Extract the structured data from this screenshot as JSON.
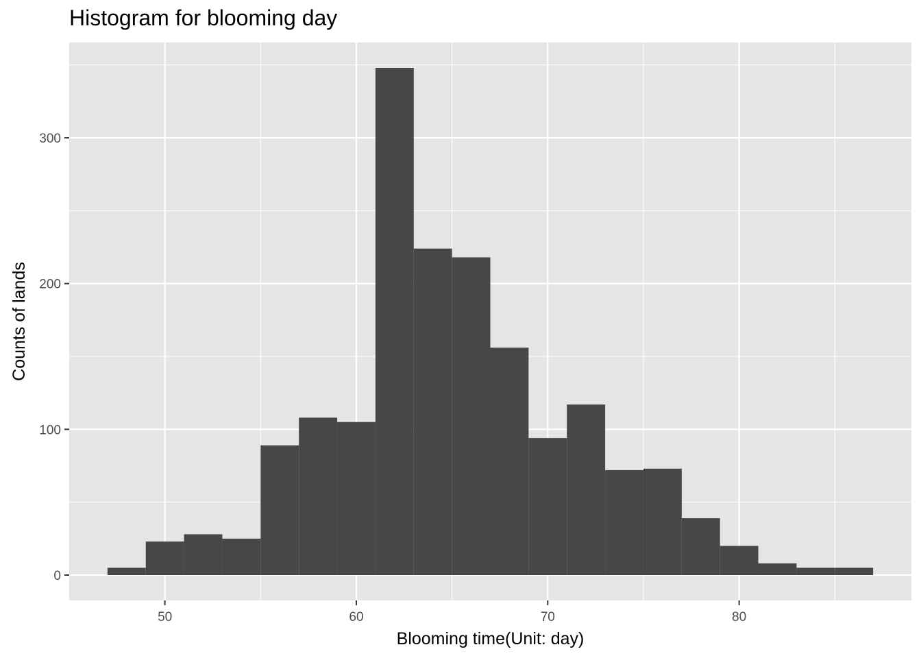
{
  "chart_data": {
    "type": "bar",
    "subtype": "histogram",
    "title": "Histogram for blooming day",
    "xlabel": "Blooming time(Unit: day)",
    "ylabel": "Counts of lands",
    "bin_width": 2,
    "bins": [
      {
        "start": 47,
        "end": 49,
        "count": 5
      },
      {
        "start": 49,
        "end": 51,
        "count": 23
      },
      {
        "start": 51,
        "end": 53,
        "count": 28
      },
      {
        "start": 53,
        "end": 55,
        "count": 25
      },
      {
        "start": 55,
        "end": 57,
        "count": 89
      },
      {
        "start": 57,
        "end": 59,
        "count": 108
      },
      {
        "start": 59,
        "end": 61,
        "count": 105
      },
      {
        "start": 61,
        "end": 63,
        "count": 348
      },
      {
        "start": 63,
        "end": 65,
        "count": 224
      },
      {
        "start": 65,
        "end": 67,
        "count": 218
      },
      {
        "start": 67,
        "end": 69,
        "count": 156
      },
      {
        "start": 69,
        "end": 71,
        "count": 94
      },
      {
        "start": 71,
        "end": 73,
        "count": 117
      },
      {
        "start": 73,
        "end": 75,
        "count": 72
      },
      {
        "start": 75,
        "end": 77,
        "count": 73
      },
      {
        "start": 77,
        "end": 79,
        "count": 39
      },
      {
        "start": 79,
        "end": 81,
        "count": 20
      },
      {
        "start": 81,
        "end": 83,
        "count": 8
      },
      {
        "start": 83,
        "end": 85,
        "count": 5
      },
      {
        "start": 85,
        "end": 87,
        "count": 5
      }
    ],
    "xlim": [
      45,
      89
    ],
    "ylim": [
      -17.4,
      365.4
    ],
    "x_ticks": [
      50,
      60,
      70,
      80
    ],
    "y_ticks": [
      0,
      100,
      200,
      300
    ],
    "x_tick_labels": [
      "50",
      "60",
      "70",
      "80"
    ],
    "y_tick_labels": [
      "0",
      "100",
      "200",
      "300"
    ],
    "grid": true,
    "bar_color": "#474747",
    "panel_background": "#e5e5e5",
    "grid_color": "#ffffff"
  }
}
